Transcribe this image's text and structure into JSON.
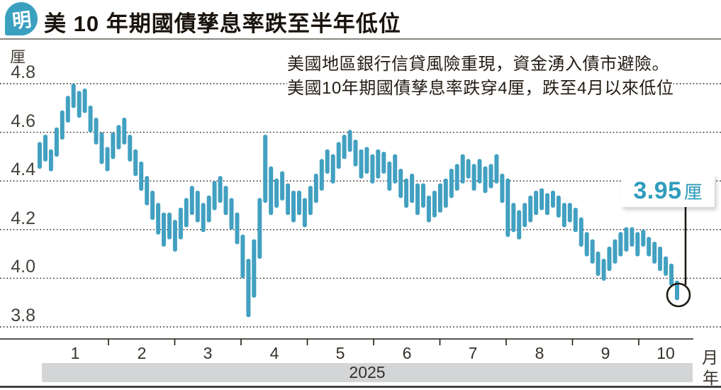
{
  "header": {
    "logo_text": "明",
    "title": "美 10 年期國債孳息率跌至半年低位"
  },
  "annotation": {
    "line1": "美國地區銀行信貸風險重現，資金湧入債市避險。",
    "line2": "美國10年期國債孳息率跌穿4厘，跌至4月以來低位"
  },
  "y_axis": {
    "unit": "厘",
    "labels": [
      "4.8",
      "4.6",
      "4.4",
      "4.2",
      "4.0",
      "3.8"
    ]
  },
  "x_axis": {
    "months": [
      "1",
      "2",
      "3",
      "4",
      "5",
      "6",
      "7",
      "8",
      "9",
      "10"
    ],
    "month_unit": "月",
    "year": "2025",
    "year_unit": "年"
  },
  "callout": {
    "value": "3.95",
    "unit": "厘"
  },
  "colors": {
    "series_teal": "#42A0C1",
    "callout_text": "#2F9CBC",
    "logo_bg": "#3BA0BF",
    "grid_ink": "#1F1A14",
    "year_bar_bg": "#D3D5D7"
  },
  "chart_data": {
    "type": "bar",
    "subtype": "daily high-low range",
    "title": "美 10 年期國債孳息率跌至半年低位",
    "ylabel": "厘",
    "xlabel": "月（2025年）",
    "ylim": [
      3.8,
      4.8
    ],
    "gridlines": [
      4.8,
      4.6,
      4.4,
      4.2,
      4.0,
      3.8
    ],
    "x_months": [
      1,
      2,
      3,
      4,
      5,
      6,
      7,
      8,
      9,
      10
    ],
    "grid": true,
    "last_value": 3.95,
    "last_value_label": "3.95厘",
    "bars": [
      [
        4.45,
        4.56
      ],
      [
        4.48,
        4.59
      ],
      [
        4.44,
        4.53
      ],
      [
        4.5,
        4.62
      ],
      [
        4.57,
        4.69
      ],
      [
        4.64,
        4.75
      ],
      [
        4.7,
        4.8
      ],
      [
        4.66,
        4.77
      ],
      [
        4.68,
        4.78
      ],
      [
        4.6,
        4.71
      ],
      [
        4.55,
        4.66
      ],
      [
        4.47,
        4.6
      ],
      [
        4.44,
        4.54
      ],
      [
        4.49,
        4.6
      ],
      [
        4.53,
        4.63
      ],
      [
        4.55,
        4.66
      ],
      [
        4.48,
        4.59
      ],
      [
        4.42,
        4.53
      ],
      [
        4.36,
        4.48
      ],
      [
        4.3,
        4.42
      ],
      [
        4.24,
        4.36
      ],
      [
        4.18,
        4.31
      ],
      [
        4.13,
        4.27
      ],
      [
        4.16,
        4.27
      ],
      [
        4.11,
        4.24
      ],
      [
        4.16,
        4.29
      ],
      [
        4.21,
        4.33
      ],
      [
        4.26,
        4.38
      ],
      [
        4.23,
        4.36
      ],
      [
        4.19,
        4.31
      ],
      [
        4.23,
        4.34
      ],
      [
        4.28,
        4.4
      ],
      [
        4.31,
        4.42
      ],
      [
        4.26,
        4.38
      ],
      [
        4.2,
        4.33
      ],
      [
        4.14,
        4.27
      ],
      [
        4.0,
        4.18
      ],
      [
        3.84,
        4.08
      ],
      [
        3.92,
        4.16
      ],
      [
        4.08,
        4.33
      ],
      [
        4.31,
        4.59
      ],
      [
        4.26,
        4.46
      ],
      [
        4.29,
        4.41
      ],
      [
        4.32,
        4.44
      ],
      [
        4.26,
        4.39
      ],
      [
        4.23,
        4.36
      ],
      [
        4.26,
        4.36
      ],
      [
        4.21,
        4.33
      ],
      [
        4.26,
        4.38
      ],
      [
        4.31,
        4.43
      ],
      [
        4.36,
        4.49
      ],
      [
        4.43,
        4.53
      ],
      [
        4.39,
        4.51
      ],
      [
        4.45,
        4.56
      ],
      [
        4.49,
        4.59
      ],
      [
        4.52,
        4.61
      ],
      [
        4.46,
        4.57
      ],
      [
        4.41,
        4.53
      ],
      [
        4.43,
        4.54
      ],
      [
        4.39,
        4.51
      ],
      [
        4.41,
        4.53
      ],
      [
        4.43,
        4.52
      ],
      [
        4.36,
        4.48
      ],
      [
        4.39,
        4.51
      ],
      [
        4.33,
        4.45
      ],
      [
        4.29,
        4.41
      ],
      [
        4.31,
        4.43
      ],
      [
        4.26,
        4.39
      ],
      [
        4.29,
        4.39
      ],
      [
        4.23,
        4.34
      ],
      [
        4.25,
        4.36
      ],
      [
        4.27,
        4.39
      ],
      [
        4.29,
        4.41
      ],
      [
        4.33,
        4.45
      ],
      [
        4.36,
        4.47
      ],
      [
        4.39,
        4.51
      ],
      [
        4.41,
        4.49
      ],
      [
        4.36,
        4.47
      ],
      [
        4.39,
        4.49
      ],
      [
        4.35,
        4.46
      ],
      [
        4.37,
        4.47
      ],
      [
        4.39,
        4.51
      ],
      [
        4.31,
        4.43
      ],
      [
        4.17,
        4.41
      ],
      [
        4.19,
        4.31
      ],
      [
        4.16,
        4.28
      ],
      [
        4.21,
        4.31
      ],
      [
        4.23,
        4.34
      ],
      [
        4.26,
        4.36
      ],
      [
        4.28,
        4.37
      ],
      [
        4.26,
        4.35
      ],
      [
        4.29,
        4.36
      ],
      [
        4.25,
        4.34
      ],
      [
        4.21,
        4.31
      ],
      [
        4.23,
        4.31
      ],
      [
        4.19,
        4.29
      ],
      [
        4.13,
        4.25
      ],
      [
        4.09,
        4.19
      ],
      [
        4.06,
        4.16
      ],
      [
        4.01,
        4.11
      ],
      [
        3.99,
        4.08
      ],
      [
        4.03,
        4.13
      ],
      [
        4.06,
        4.16
      ],
      [
        4.09,
        4.19
      ],
      [
        4.11,
        4.21
      ],
      [
        4.13,
        4.21
      ],
      [
        4.09,
        4.19
      ],
      [
        4.13,
        4.2
      ],
      [
        4.09,
        4.17
      ],
      [
        4.06,
        4.15
      ],
      [
        4.03,
        4.13
      ],
      [
        4.01,
        4.09
      ],
      [
        3.97,
        4.06
      ],
      [
        3.91,
        3.99
      ]
    ]
  }
}
